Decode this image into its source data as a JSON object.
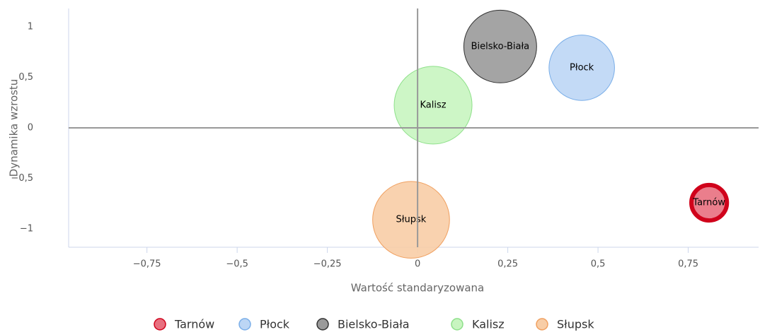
{
  "chart_data": {
    "type": "bubble",
    "xlabel": "Wartość standaryzowana",
    "ylabel": "Dynamika wzrostu",
    "xlim": [
      -0.967,
      0.945
    ],
    "ylim": [
      -1.18,
      1.18
    ],
    "xticks": [
      {
        "value": -0.75,
        "label": "−0,75"
      },
      {
        "value": -0.5,
        "label": "−0,5"
      },
      {
        "value": -0.25,
        "label": "−0,25"
      },
      0,
      {
        "value": 0.25,
        "label": "0,25"
      },
      {
        "value": 0.5,
        "label": "0,5"
      },
      {
        "value": 0.75,
        "label": "0,75"
      }
    ],
    "yticks": [
      {
        "value": -1,
        "label": "−1"
      },
      {
        "value": -0.5,
        "label": "−0,5"
      },
      0,
      {
        "value": 0.5,
        "label": "0,5"
      },
      1
    ],
    "series": [
      {
        "name": "Tarnów",
        "color": "#e8707f",
        "stroke": "#d0021b",
        "x": [
          0.808
        ],
        "values": [
          -0.74
        ],
        "sizes": [
          25
        ]
      },
      {
        "name": "Płock",
        "color": "#bcd6f5",
        "stroke": "#7aaee8",
        "x": [
          0.455
        ],
        "values": [
          0.594
        ],
        "sizes": [
          85
        ]
      },
      {
        "name": "Bielsko-Biała",
        "color": "#9a9a9a",
        "stroke": "#333333",
        "x": [
          0.229
        ],
        "values": [
          0.804
        ],
        "sizes": [
          105
        ]
      },
      {
        "name": "Kalisz",
        "color": "#c8f5c0",
        "stroke": "#8ee08a",
        "x": [
          0.043
        ],
        "values": [
          0.224
        ],
        "sizes": [
          120
        ]
      },
      {
        "name": "Słupsk",
        "color": "#f8cda6",
        "stroke": "#f0a060",
        "x": [
          -0.018
        ],
        "values": [
          -0.909
        ],
        "sizes": [
          117
        ]
      }
    ]
  }
}
